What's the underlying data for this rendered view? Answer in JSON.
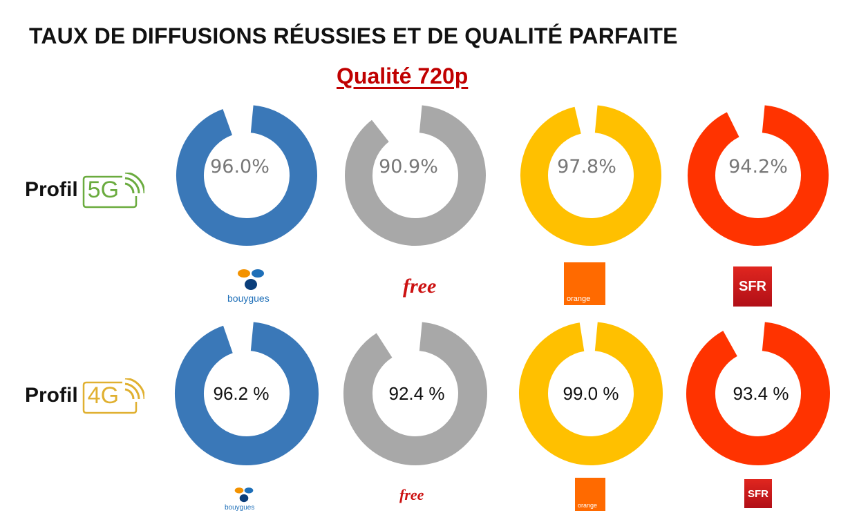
{
  "title": "TAUX DE DIFFUSIONS RÉUSSIES ET DE QUALITÉ PARFAITE",
  "subtitle": "Qualité 720p",
  "colors": {
    "bouygues": "#3a78b8",
    "free": "#a8a8a8",
    "orange": "#ffc000",
    "sfr": "#ff3300",
    "profile_5g": "#6aab3e",
    "profile_4g": "#e0b030",
    "title_red": "#c00000"
  },
  "profiles": {
    "p5g": {
      "word": "Profil",
      "gen": "5G"
    },
    "p4g": {
      "word": "Profil",
      "gen": "4G"
    }
  },
  "logos": {
    "bouygues": "bouygues",
    "free": "free",
    "orange": "orange",
    "sfr": "SFR"
  },
  "chart_data": [
    {
      "type": "pie",
      "profile": "Profil 5G",
      "categories": [
        "bouygues",
        "free",
        "orange",
        "SFR"
      ],
      "values": [
        96.0,
        90.9,
        97.8,
        94.2
      ],
      "labels": [
        "96.0%",
        "90.9%",
        "97.8%",
        "94.2%"
      ]
    },
    {
      "type": "pie",
      "profile": "Profil 4G",
      "categories": [
        "bouygues",
        "free",
        "orange",
        "SFR"
      ],
      "values": [
        96.2,
        92.4,
        99.0,
        93.4
      ],
      "labels": [
        "96.2 %",
        "92.4 %",
        "99.0 %",
        "93.4 %"
      ]
    }
  ]
}
